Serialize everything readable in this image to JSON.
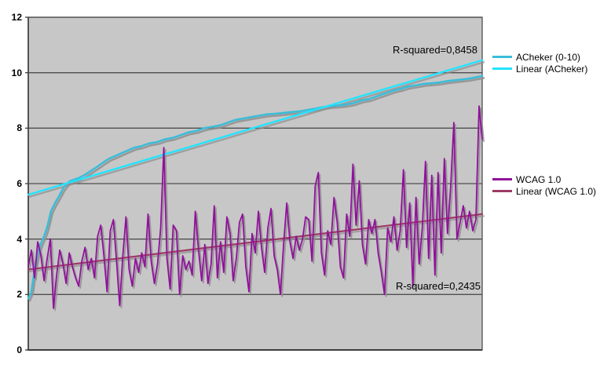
{
  "chart_data": {
    "type": "line",
    "title": "",
    "xlabel": "",
    "ylabel": "",
    "ylim": [
      0,
      12
    ],
    "yticks": [
      0,
      2,
      4,
      6,
      8,
      10,
      12
    ],
    "x_axis_tick_labels": [],
    "grid": "horizontal",
    "legend_position": "right",
    "plot_bg_color": "#c7c7c7",
    "grid_color": "#4f4f4f",
    "shadow_color": "#8f8f8f",
    "series": [
      {
        "name": "ACheker (0-10)",
        "color": "#3bbcd8",
        "line_width": 2.6,
        "shadow": true,
        "points": [
          [
            0,
            1.85
          ],
          [
            0.007,
            2.1
          ],
          [
            0.014,
            2.9
          ],
          [
            0.021,
            3.5
          ],
          [
            0.028,
            3.85
          ],
          [
            0.035,
            4.1
          ],
          [
            0.042,
            4.45
          ],
          [
            0.05,
            5.0
          ],
          [
            0.059,
            5.3
          ],
          [
            0.068,
            5.55
          ],
          [
            0.076,
            5.8
          ],
          [
            0.085,
            6.0
          ],
          [
            0.093,
            6.1
          ],
          [
            0.102,
            6.15
          ],
          [
            0.111,
            6.2
          ],
          [
            0.123,
            6.3
          ],
          [
            0.137,
            6.45
          ],
          [
            0.151,
            6.6
          ],
          [
            0.164,
            6.75
          ],
          [
            0.178,
            6.9
          ],
          [
            0.192,
            7.0
          ],
          [
            0.206,
            7.1
          ],
          [
            0.22,
            7.2
          ],
          [
            0.234,
            7.3
          ],
          [
            0.249,
            7.35
          ],
          [
            0.266,
            7.45
          ],
          [
            0.284,
            7.5
          ],
          [
            0.301,
            7.6
          ],
          [
            0.318,
            7.65
          ],
          [
            0.336,
            7.75
          ],
          [
            0.353,
            7.85
          ],
          [
            0.37,
            7.9
          ],
          [
            0.388,
            8.0
          ],
          [
            0.405,
            8.05
          ],
          [
            0.422,
            8.1
          ],
          [
            0.439,
            8.2
          ],
          [
            0.457,
            8.3
          ],
          [
            0.474,
            8.35
          ],
          [
            0.491,
            8.4
          ],
          [
            0.509,
            8.45
          ],
          [
            0.526,
            8.5
          ],
          [
            0.543,
            8.52
          ],
          [
            0.561,
            8.55
          ],
          [
            0.578,
            8.58
          ],
          [
            0.595,
            8.6
          ],
          [
            0.613,
            8.65
          ],
          [
            0.63,
            8.7
          ],
          [
            0.647,
            8.75
          ],
          [
            0.664,
            8.8
          ],
          [
            0.682,
            8.82
          ],
          [
            0.699,
            8.85
          ],
          [
            0.716,
            8.9
          ],
          [
            0.734,
            9.0
          ],
          [
            0.751,
            9.05
          ],
          [
            0.768,
            9.15
          ],
          [
            0.786,
            9.25
          ],
          [
            0.803,
            9.35
          ],
          [
            0.82,
            9.42
          ],
          [
            0.837,
            9.5
          ],
          [
            0.855,
            9.55
          ],
          [
            0.872,
            9.6
          ],
          [
            0.889,
            9.62
          ],
          [
            0.907,
            9.65
          ],
          [
            0.924,
            9.7
          ],
          [
            0.941,
            9.73
          ],
          [
            0.959,
            9.76
          ],
          [
            0.976,
            9.8
          ],
          [
            1,
            9.88
          ]
        ]
      },
      {
        "name": "WCAG 1.0",
        "color": "#91109c",
        "line_width": 1.8,
        "shadow": true,
        "values": [
          3.0,
          3.6,
          2.6,
          3.9,
          3.4,
          2.5,
          3.3,
          4.0,
          1.5,
          2.7,
          3.6,
          3.1,
          2.4,
          3.5,
          3.0,
          2.6,
          2.3,
          3.2,
          3.7,
          2.9,
          3.3,
          2.6,
          4.1,
          4.5,
          3.4,
          2.1,
          4.3,
          4.7,
          3.2,
          1.6,
          3.4,
          4.8,
          2.9,
          2.3,
          3.3,
          2.8,
          3.5,
          3.0,
          4.9,
          3.2,
          2.4,
          3.1,
          4.4,
          7.3,
          3.3,
          2.2,
          4.5,
          4.3,
          2.0,
          3.4,
          2.9,
          3.2,
          2.7,
          5.0,
          3.6,
          2.5,
          3.8,
          2.4,
          3.1,
          5.2,
          2.6,
          3.9,
          2.8,
          4.8,
          4.2,
          2.5,
          3.3,
          4.6,
          4.9,
          3.0,
          2.1,
          4.2,
          3.5,
          5.0,
          3.7,
          2.8,
          4.4,
          5.1,
          3.4,
          2.9,
          2.0,
          3.8,
          5.3,
          3.9,
          3.3,
          4.1,
          3.6,
          4.0,
          4.8,
          4.7,
          3.2,
          5.9,
          6.4,
          3.5,
          2.7,
          4.3,
          3.8,
          5.5,
          4.6,
          3.0,
          2.6,
          4.9,
          4.1,
          6.7,
          4.5,
          6.1,
          3.8,
          3.1,
          4.7,
          4.2,
          4.7,
          3.5,
          2.8,
          2.0,
          4.4,
          3.9,
          4.8,
          3.6,
          4.3,
          6.5,
          3.7,
          5.3,
          2.3,
          5.5,
          3.1,
          4.4,
          6.8,
          3.3,
          6.3,
          2.7,
          6.4,
          3.5,
          6.9,
          4.2,
          5.9,
          8.2,
          4.0,
          4.6,
          5.2,
          4.4,
          5.0,
          4.3,
          4.7,
          8.8,
          7.6
        ]
      }
    ],
    "trendlines": [
      {
        "name": "Linear (ACheker)",
        "color": "#22e4ff",
        "line_width": 2.4,
        "start_value": 5.6,
        "end_value": 10.45,
        "r_squared": "0,8458"
      },
      {
        "name": "Linear (WCAG 1.0)",
        "color": "#9c3a64",
        "line_width": 2.2,
        "start_value": 2.9,
        "end_value": 4.9,
        "r_squared": "0,2435"
      }
    ]
  },
  "legend": {
    "items": [
      {
        "label": "ACheker (0-10)",
        "color": "#3bbcd8"
      },
      {
        "label": "Linear (ACheker)",
        "color": "#22e4ff"
      },
      {
        "label": "WCAG 1.0",
        "color": "#91109c"
      },
      {
        "label": "Linear (WCAG 1.0)",
        "color": "#9c3a64"
      }
    ]
  },
  "annotations": {
    "top": {
      "text": "R-squared=0,8458"
    },
    "bottom": {
      "text": "R-squared=0,2435"
    }
  }
}
